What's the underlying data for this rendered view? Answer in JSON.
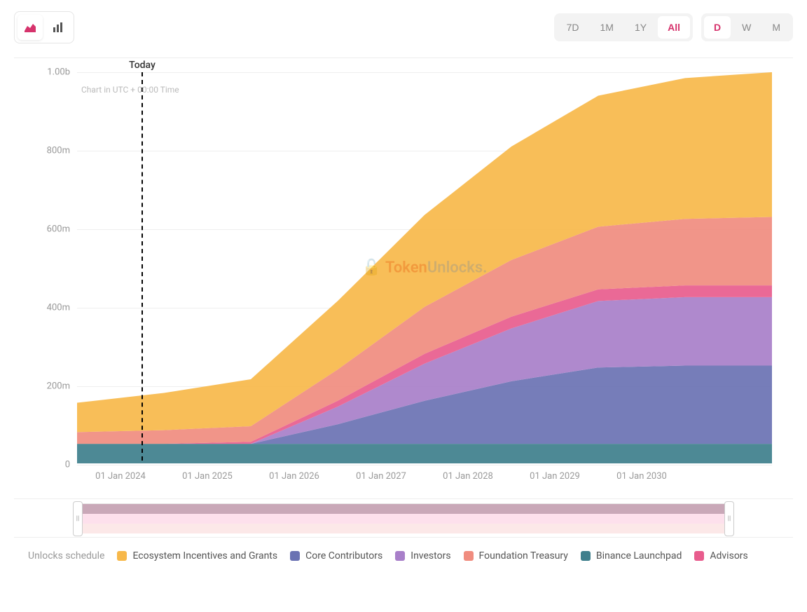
{
  "toolbar": {
    "views": [
      "area",
      "bar"
    ],
    "active_view": "area",
    "periods": [
      "7D",
      "1M",
      "1Y",
      "All"
    ],
    "active_period": "All",
    "intervals": [
      "D",
      "W",
      "M"
    ],
    "active_interval": "D"
  },
  "chart": {
    "type": "area-stacked",
    "today_label": "Today",
    "today_x_index": 0.75,
    "utc_label": "Chart in UTC + 00:00 Time",
    "watermark_brand1": "Token",
    "watermark_brand2": "Unlocks.",
    "ylim": [
      0,
      1000
    ],
    "y_ticks": [
      {
        "v": 0,
        "label": "0"
      },
      {
        "v": 200,
        "label": "200m"
      },
      {
        "v": 400,
        "label": "400m"
      },
      {
        "v": 600,
        "label": "600m"
      },
      {
        "v": 800,
        "label": "800m"
      },
      {
        "v": 1000,
        "label": "1.00b"
      }
    ],
    "x_labels": [
      "01 Jan 2024",
      "01 Jan 2025",
      "01 Jan 2026",
      "01 Jan 2027",
      "01 Jan 2028",
      "01 Jan 2029",
      "01 Jan 2030"
    ],
    "x_count": 8,
    "background_color": "#ffffff",
    "grid_color": "#eeeeee",
    "series": [
      {
        "name": "Binance Launchpad",
        "color": "#3e7f8c",
        "values": [
          50,
          50,
          50,
          50,
          50,
          50,
          50,
          50,
          50
        ]
      },
      {
        "name": "Core Contributors",
        "color": "#6a72b3",
        "values": [
          0,
          0,
          0,
          50,
          110,
          160,
          195,
          200,
          200
        ]
      },
      {
        "name": "Investors",
        "color": "#a87fc9",
        "values": [
          0,
          0,
          0,
          45,
          95,
          135,
          170,
          175,
          175
        ]
      },
      {
        "name": "Advisors",
        "color": "#e85c8d",
        "values": [
          0,
          0,
          5,
          15,
          25,
          30,
          30,
          30,
          30
        ]
      },
      {
        "name": "Foundation Treasury",
        "color": "#f08c7f",
        "values": [
          30,
          35,
          40,
          80,
          120,
          145,
          160,
          170,
          175
        ]
      },
      {
        "name": "Ecosystem Incentives and Grants",
        "color": "#f7b84a",
        "values": [
          75,
          95,
          120,
          175,
          235,
          290,
          335,
          360,
          370
        ]
      }
    ],
    "navigator": {
      "strips": [
        {
          "color": "#fce8e8"
        },
        {
          "color": "#fde0ec"
        },
        {
          "color": "#c9a8b8"
        }
      ]
    }
  },
  "legend": {
    "title": "Unlocks schedule",
    "items": [
      {
        "label": "Ecosystem Incentives and Grants",
        "color": "#f7b84a"
      },
      {
        "label": "Core Contributors",
        "color": "#6a72b3"
      },
      {
        "label": "Investors",
        "color": "#a87fc9"
      },
      {
        "label": "Foundation Treasury",
        "color": "#f08c7f"
      },
      {
        "label": "Binance Launchpad",
        "color": "#3e7f8c"
      },
      {
        "label": "Advisors",
        "color": "#e85c8d"
      }
    ]
  }
}
